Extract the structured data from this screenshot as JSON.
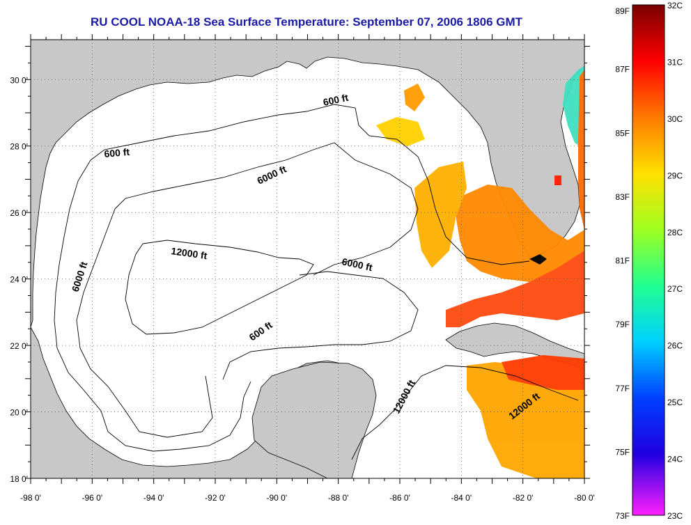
{
  "title": "RU COOL  NOAA-18  Sea Surface Temperature:  September 07, 2006 1806 GMT",
  "map": {
    "lon_labels": [
      "-98 0'",
      "-96 0'",
      "-94 0'",
      "-92 0'",
      "-90 0'",
      "-88 0'",
      "-86 0'",
      "-84 0'",
      "-82 0'",
      "-80 0'"
    ],
    "lat_labels": [
      "30 0'",
      "28 0'",
      "26 0'",
      "24 0'",
      "22 0'",
      "20 0'",
      "18 0'"
    ],
    "lon_range": [
      -98,
      -80
    ],
    "lat_range": [
      18,
      31.2
    ],
    "grid": "dotted",
    "land_color": "#c8c8c8",
    "water_color": "#ffffff",
    "contours": [
      {
        "label": "600 ft"
      },
      {
        "label": "600 ft"
      },
      {
        "label": "6000 ft"
      },
      {
        "label": "6000 ft"
      },
      {
        "label": "12000 ft"
      },
      {
        "label": "6000 ft"
      },
      {
        "label": "600 ft"
      },
      {
        "label": "12000 ft"
      },
      {
        "label": "12000 ft"
      }
    ]
  },
  "colorbar": {
    "f_labels": [
      "89F",
      "87F",
      "85F",
      "83F",
      "81F",
      "79F",
      "77F",
      "75F",
      "73F"
    ],
    "c_labels": [
      "32C",
      "31C",
      "30C",
      "29C",
      "28C",
      "27C",
      "26C",
      "25C",
      "24C",
      "23C"
    ],
    "colors": [
      "#8b0000",
      "#ff0000",
      "#ff8c00",
      "#ffff00",
      "#7fff00",
      "#00ffff",
      "#0080ff",
      "#0000ff",
      "#8000ff",
      "#ff00ff"
    ]
  }
}
